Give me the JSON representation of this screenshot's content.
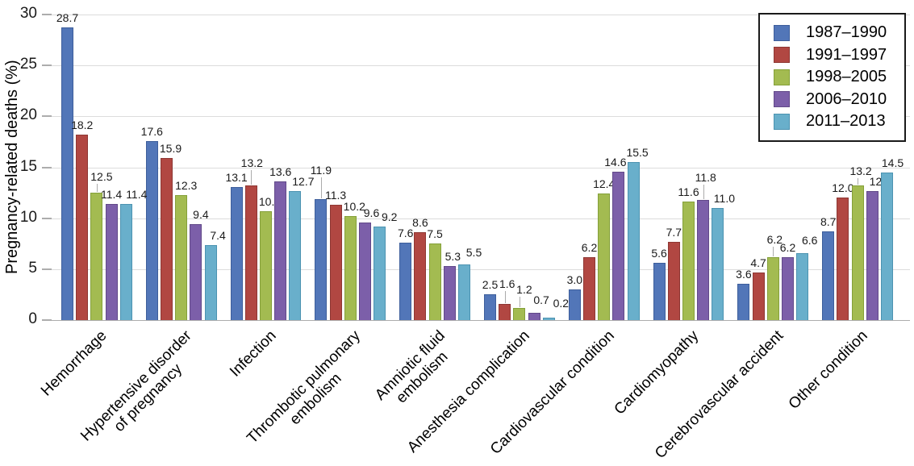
{
  "chart_data": {
    "type": "bar",
    "title": "",
    "xlabel": "",
    "ylabel": "Pregnancy-related deaths (%)",
    "ylim": [
      0,
      30
    ],
    "yticks": [
      0,
      5,
      10,
      15,
      20,
      25,
      30
    ],
    "grid": "horizontal",
    "legend_position": "top-right",
    "categories": [
      [
        "Hemorrhage"
      ],
      [
        "Hypertensive disorder",
        "of pregnancy"
      ],
      [
        "Infection"
      ],
      [
        "Thrombotic pulmonary",
        "embolism"
      ],
      [
        "Amniotic fluid",
        "embolism"
      ],
      [
        "Anesthesia complication"
      ],
      [
        "Cardiovascular condition"
      ],
      [
        "Cardiomyopathy"
      ],
      [
        "Cerebrovascular accident"
      ],
      [
        "Other condition"
      ]
    ],
    "series": [
      {
        "name": "1987–1990",
        "color": "#5276B8",
        "edge": "#3D5E9B",
        "values": [
          28.7,
          17.6,
          13.1,
          11.9,
          7.6,
          2.5,
          3.0,
          5.6,
          3.6,
          8.7
        ]
      },
      {
        "name": "1991–1997",
        "color": "#B14742",
        "edge": "#8E3733",
        "values": [
          18.2,
          15.9,
          13.2,
          11.3,
          8.6,
          1.6,
          6.2,
          7.7,
          4.7,
          12.0
        ]
      },
      {
        "name": "1998–2005",
        "color": "#A3BB51",
        "edge": "#84A039",
        "values": [
          12.5,
          12.3,
          10.7,
          10.2,
          7.5,
          1.2,
          12.4,
          11.6,
          6.2,
          13.2
        ]
      },
      {
        "name": "2006–2010",
        "color": "#7C5FA9",
        "edge": "#624989",
        "values": [
          11.4,
          9.4,
          13.6,
          9.6,
          5.3,
          0.7,
          14.6,
          11.8,
          6.2,
          12.7
        ]
      },
      {
        "name": "2011–2013",
        "color": "#69AFCB",
        "edge": "#4C93B1",
        "values": [
          11.4,
          7.4,
          12.7,
          9.2,
          5.5,
          0.2,
          15.5,
          11.0,
          6.6,
          14.5
        ]
      }
    ],
    "value_label_format": "one_decimal",
    "value_label_offsets": {
      "0-2": {
        "dx": 6,
        "dy": 8,
        "leader": true
      },
      "0-4": {
        "dx": 13,
        "dy": 0
      },
      "1-1": {
        "dx": 5,
        "dy": 0
      },
      "1-2": {
        "dx": 6,
        "dy": 0
      },
      "1-3": {
        "dx": 6,
        "dy": 0
      },
      "1-4": {
        "dx": 9,
        "dy": 0
      },
      "2-1": {
        "dx": 1,
        "dy": 16,
        "leader": true
      },
      "2-2": {
        "dx": 5,
        "dy": 0
      },
      "2-4": {
        "dx": 10,
        "dy": 0
      },
      "3-0": {
        "dx": 0,
        "dy": 24,
        "leader": true
      },
      "3-2": {
        "dx": 5,
        "dy": 0
      },
      "3-3": {
        "dx": 8,
        "dy": 0
      },
      "3-4": {
        "dx": 12,
        "dy": 0
      },
      "4-3": {
        "dx": 4,
        "dy": 0
      },
      "4-4": {
        "dx": 12,
        "dy": 3
      },
      "5-1": {
        "dx": 3,
        "dy": 13,
        "leader": true
      },
      "5-2": {
        "dx": 6,
        "dy": 11,
        "leader": true
      },
      "5-3": {
        "dx": 9,
        "dy": 4
      },
      "5-4": {
        "dx": 15,
        "dy": 6
      },
      "6-3": {
        "dx": -4,
        "dy": 0
      },
      "6-4": {
        "dx": 5,
        "dy": 0
      },
      "7-3": {
        "dx": 3,
        "dy": 16,
        "leader": true
      },
      "7-4": {
        "dx": 8,
        "dy": 0
      },
      "8-2": {
        "dx": 2,
        "dy": 10,
        "leader": true
      },
      "8-4": {
        "dx": 9,
        "dy": 4
      },
      "9-2": {
        "dx": 4,
        "dy": 6,
        "leader": true
      },
      "9-3": {
        "dx": 10,
        "dy": 0
      },
      "9-4": {
        "dx": 7,
        "dy": 0
      }
    },
    "style": {
      "grid_color": "#DCDCDC",
      "axis_line_color": "#ADADAD",
      "tick_color": "#ADADAD",
      "leader_line_color": "#ABABAB",
      "legend_border_color": "#1A1A1A",
      "background": "#FFFFFF"
    }
  }
}
